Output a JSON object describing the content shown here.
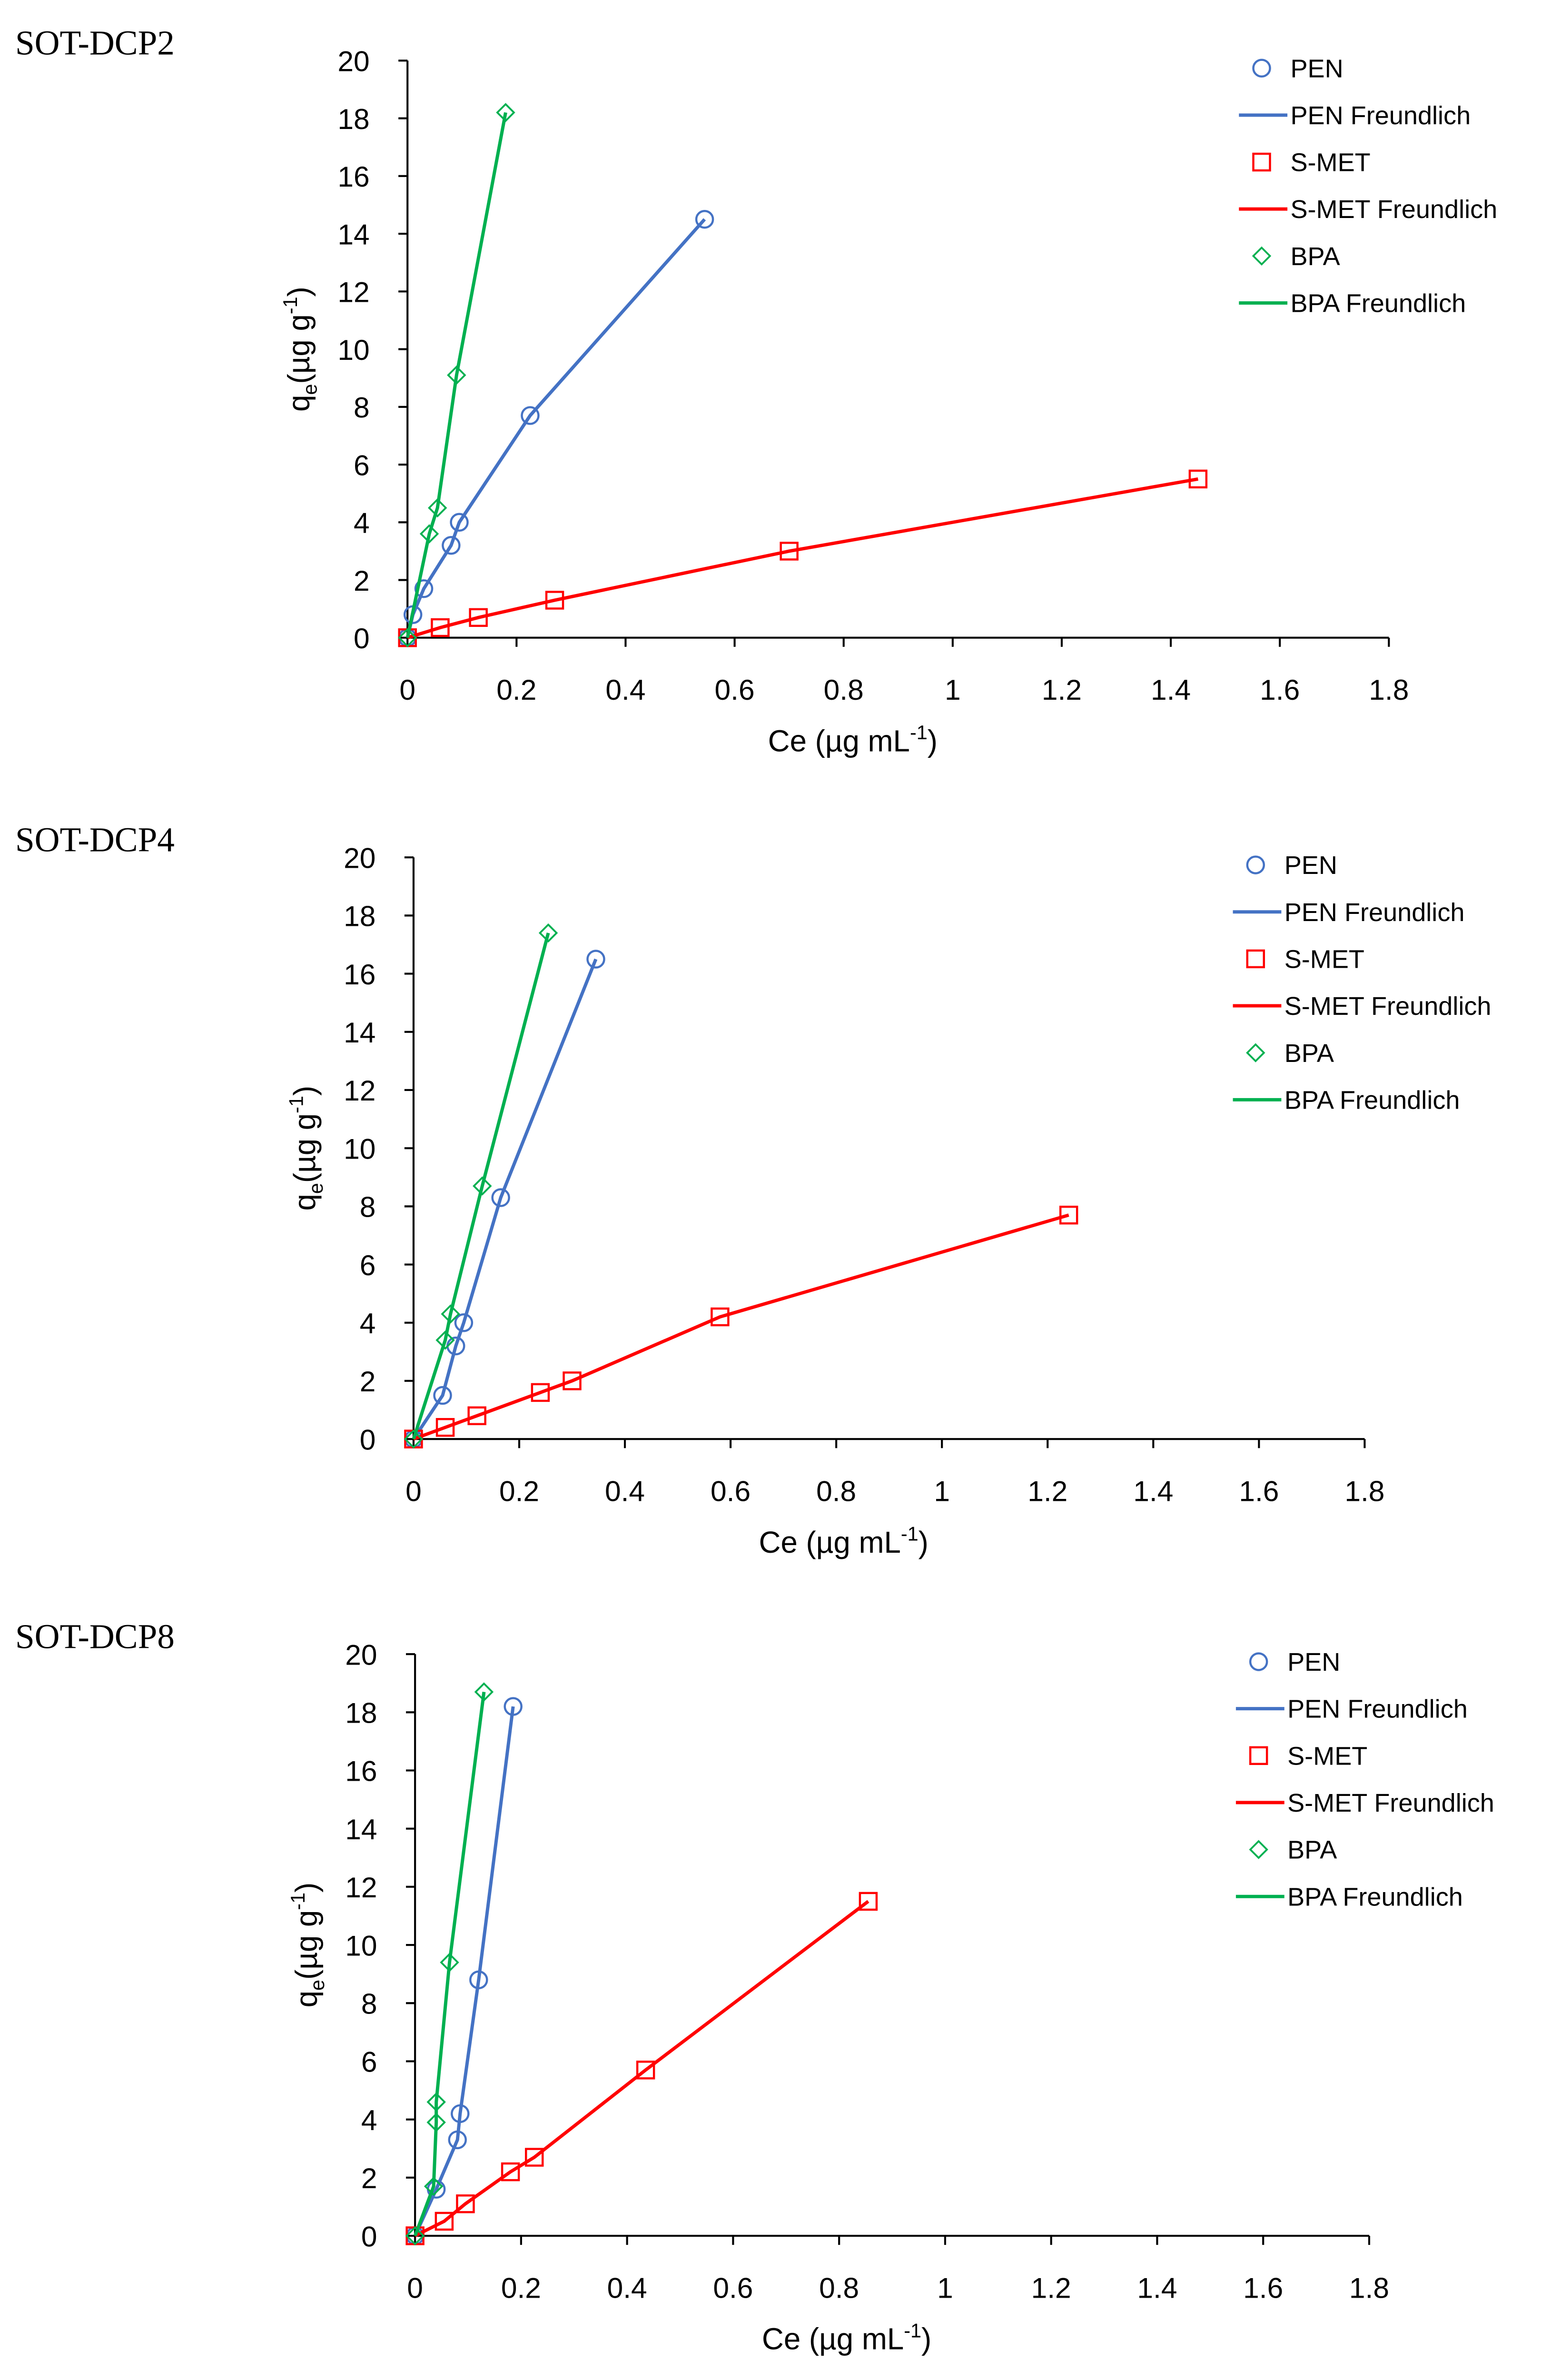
{
  "colors": {
    "PEN": "#4472c4",
    "S-MET": "#ff0000",
    "BPA": "#00b050"
  },
  "chart_data": [
    {
      "type": "scatter",
      "title": "SOT-DCP2",
      "xlabel": "Ce (µg mL",
      "xlabel_sup": "-1",
      "xlabel_end": ")",
      "ylabel": "q",
      "ylabel_sub": "e",
      "ylabel_mid": "(µg g",
      "ylabel_sup": "-1",
      "ylabel_end": ")",
      "xlim": [
        0,
        1.8
      ],
      "ylim": [
        0,
        20
      ],
      "xticks": [
        "0",
        "0.2",
        "0.4",
        "0.6",
        "0.8",
        "1",
        "1.2",
        "1.4",
        "1.6",
        "1.8"
      ],
      "yticks": [
        "0",
        "2",
        "4",
        "6",
        "8",
        "10",
        "12",
        "14",
        "16",
        "18",
        "20"
      ],
      "legend": [
        "PEN",
        "PEN Freundlich",
        "S-MET",
        "S-MET Freundlich",
        "BPA",
        "BPA Freundlich"
      ],
      "legend_position": "top-right",
      "series": [
        {
          "name": "PEN",
          "marker": "circle",
          "x": [
            0,
            0.01,
            0.03,
            0.08,
            0.095,
            0.225,
            0.545
          ],
          "y": [
            0,
            0.8,
            1.7,
            3.2,
            4.0,
            7.7,
            14.5
          ]
        },
        {
          "name": "S-MET",
          "marker": "square",
          "x": [
            0,
            0.06,
            0.13,
            0.27,
            0.7,
            1.45
          ],
          "y": [
            0,
            0.35,
            0.7,
            1.3,
            3.0,
            5.5
          ]
        },
        {
          "name": "BPA",
          "marker": "diamond",
          "x": [
            0,
            0.04,
            0.055,
            0.09,
            0.18
          ],
          "y": [
            0,
            3.6,
            4.5,
            9.1,
            18.2
          ]
        }
      ]
    },
    {
      "type": "scatter",
      "title": "SOT-DCP4",
      "xlabel": "Ce (µg mL",
      "xlabel_sup": "-1",
      "xlabel_end": ")",
      "ylabel": "q",
      "ylabel_sub": "e",
      "ylabel_mid": "(µg g",
      "ylabel_sup": "-1",
      "ylabel_end": ")",
      "xlim": [
        0,
        1.8
      ],
      "ylim": [
        0,
        20
      ],
      "xticks": [
        "0",
        "0.2",
        "0.4",
        "0.6",
        "0.8",
        "1",
        "1.2",
        "1.4",
        "1.6",
        "1.8"
      ],
      "yticks": [
        "0",
        "2",
        "4",
        "6",
        "8",
        "10",
        "12",
        "14",
        "16",
        "18",
        "20"
      ],
      "legend": [
        "PEN",
        "PEN Freundlich",
        "S-MET",
        "S-MET Freundlich",
        "BPA",
        "BPA Freundlich"
      ],
      "legend_position": "top-right",
      "series": [
        {
          "name": "PEN",
          "marker": "circle",
          "x": [
            0,
            0.055,
            0.08,
            0.095,
            0.165,
            0.345
          ],
          "y": [
            0,
            1.5,
            3.2,
            4.0,
            8.3,
            16.5
          ]
        },
        {
          "name": "S-MET",
          "marker": "square",
          "x": [
            0,
            0.06,
            0.12,
            0.24,
            0.3,
            0.58,
            1.24
          ],
          "y": [
            0,
            0.4,
            0.8,
            1.6,
            2.0,
            4.2,
            7.7
          ]
        },
        {
          "name": "BPA",
          "marker": "diamond",
          "x": [
            0,
            0.06,
            0.07,
            0.13,
            0.255
          ],
          "y": [
            0,
            3.4,
            4.3,
            8.7,
            17.4
          ]
        }
      ]
    },
    {
      "type": "scatter",
      "title": "SOT-DCP8",
      "xlabel": "Ce (µg mL",
      "xlabel_sup": "-1",
      "xlabel_end": ")",
      "ylabel": "q",
      "ylabel_sub": "e",
      "ylabel_mid": "(µg g",
      "ylabel_sup": "-1",
      "ylabel_end": ")",
      "xlim": [
        0,
        1.8
      ],
      "ylim": [
        0,
        20
      ],
      "xticks": [
        "0",
        "0.2",
        "0.4",
        "0.6",
        "0.8",
        "1",
        "1.2",
        "1.4",
        "1.6",
        "1.8"
      ],
      "yticks": [
        "0",
        "2",
        "4",
        "6",
        "8",
        "10",
        "12",
        "14",
        "16",
        "18",
        "20"
      ],
      "legend": [
        "PEN",
        "PEN Freundlich",
        "S-MET",
        "S-MET Freundlich",
        "BPA",
        "BPA Freundlich"
      ],
      "legend_position": "top-right",
      "series": [
        {
          "name": "PEN",
          "marker": "circle",
          "x": [
            0,
            0.04,
            0.08,
            0.085,
            0.12,
            0.185
          ],
          "y": [
            0,
            1.6,
            3.3,
            4.2,
            8.8,
            18.2
          ]
        },
        {
          "name": "S-MET",
          "marker": "square",
          "x": [
            0,
            0.055,
            0.095,
            0.18,
            0.225,
            0.435,
            0.855
          ],
          "y": [
            0,
            0.5,
            1.1,
            2.2,
            2.7,
            5.7,
            11.5
          ]
        },
        {
          "name": "BPA",
          "marker": "diamond",
          "x": [
            0,
            0.035,
            0.04,
            0.04,
            0.065,
            0.13
          ],
          "y": [
            0,
            1.7,
            3.9,
            4.6,
            9.4,
            18.7
          ]
        }
      ]
    }
  ]
}
